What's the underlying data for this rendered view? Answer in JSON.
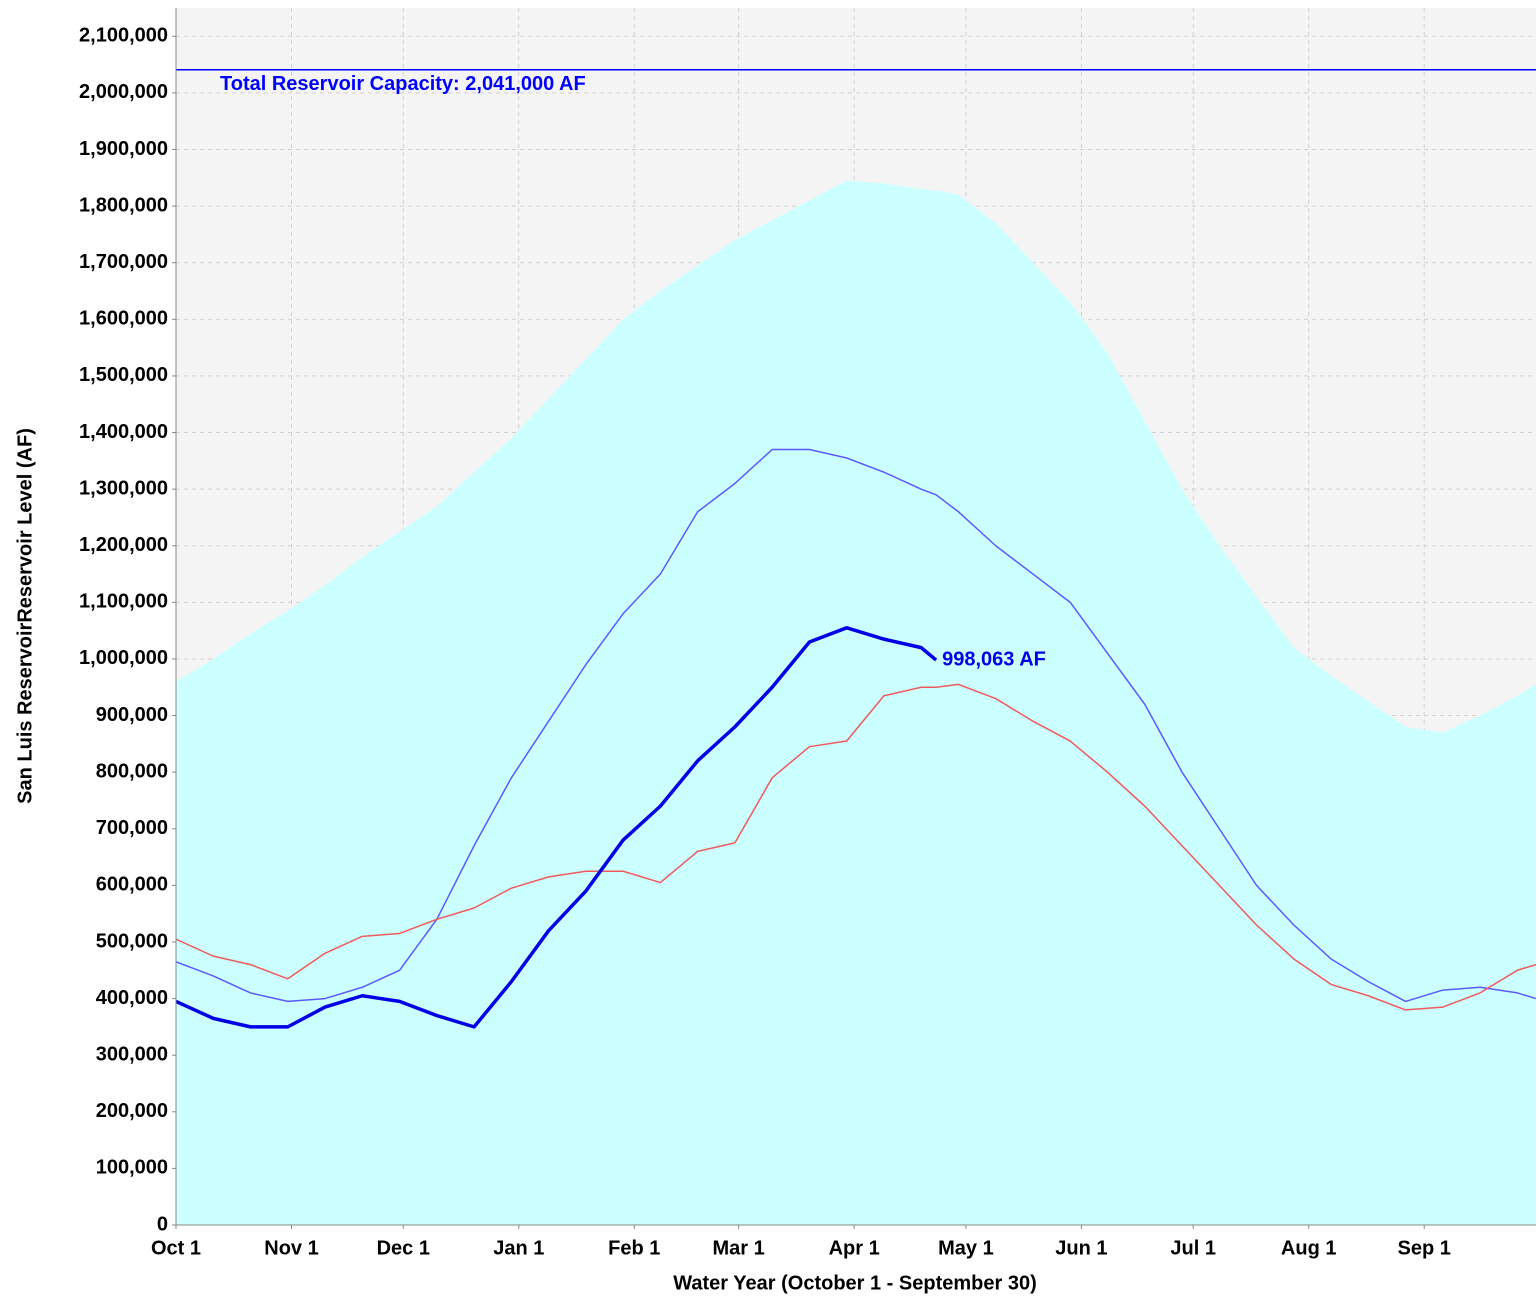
{
  "chart_data": {
    "type": "line",
    "xlabel": "Water Year (October 1 - September 30)",
    "ylabel": "San Luis ReservoirReservoir Level (AF)",
    "x": [
      0,
      10,
      20,
      30,
      40,
      50,
      60,
      70,
      80,
      90,
      100,
      110,
      120,
      130,
      140,
      150,
      160,
      170,
      180,
      190,
      200,
      204,
      210,
      220,
      230,
      240,
      250,
      260,
      270,
      280,
      290,
      300,
      310,
      320,
      330,
      340,
      350,
      360,
      365
    ],
    "xlim": [
      0,
      365
    ],
    "xticks": [
      {
        "value": 0,
        "label": "Oct 1"
      },
      {
        "value": 31,
        "label": "Nov 1"
      },
      {
        "value": 61,
        "label": "Dec 1"
      },
      {
        "value": 92,
        "label": "Jan 1"
      },
      {
        "value": 123,
        "label": "Feb 1"
      },
      {
        "value": 151,
        "label": "Mar 1"
      },
      {
        "value": 182,
        "label": "Apr 1"
      },
      {
        "value": 212,
        "label": "May 1"
      },
      {
        "value": 243,
        "label": "Jun 1"
      },
      {
        "value": 273,
        "label": "Jul 1"
      },
      {
        "value": 304,
        "label": "Aug 1"
      },
      {
        "value": 335,
        "label": "Sep 1"
      }
    ],
    "ylim": [
      0,
      2150000
    ],
    "yticks": [
      0,
      {
        "value": 100000,
        "label": "100,000"
      },
      {
        "value": 200000,
        "label": "200,000"
      },
      {
        "value": 300000,
        "label": "300,000"
      },
      {
        "value": 400000,
        "label": "400,000"
      },
      {
        "value": 500000,
        "label": "500,000"
      },
      {
        "value": 600000,
        "label": "600,000"
      },
      {
        "value": 700000,
        "label": "700,000"
      },
      {
        "value": 800000,
        "label": "800,000"
      },
      {
        "value": 900000,
        "label": "900,000"
      },
      {
        "value": 1000000,
        "label": "1,000,000"
      },
      {
        "value": 1100000,
        "label": "1,100,000"
      },
      {
        "value": 1200000,
        "label": "1,200,000"
      },
      {
        "value": 1300000,
        "label": "1,300,000"
      },
      {
        "value": 1400000,
        "label": "1,400,000"
      },
      {
        "value": 1500000,
        "label": "1,500,000"
      },
      {
        "value": 1600000,
        "label": "1,600,000"
      },
      {
        "value": 1700000,
        "label": "1,700,000"
      },
      {
        "value": 1800000,
        "label": "1,800,000"
      },
      {
        "value": 1900000,
        "label": "1,900,000"
      },
      {
        "value": 2000000,
        "label": "2,000,000"
      },
      {
        "value": 2100000,
        "label": "2,100,000"
      }
    ],
    "grid": true,
    "capacity": {
      "value": 2041000,
      "label": "Total Reservoir Capacity: 2,041,000 AF",
      "color": "#0000ff"
    },
    "series": [
      {
        "kind": "area",
        "color": "#ccffff",
        "values": [
          960000,
          1000000,
          1045000,
          1085000,
          1130000,
          1180000,
          1225000,
          1270000,
          1330000,
          1390000,
          1460000,
          1530000,
          1600000,
          1650000,
          1695000,
          1740000,
          1775000,
          1810000,
          1845000,
          1840000,
          1830000,
          1828000,
          1820000,
          1770000,
          1700000,
          1630000,
          1540000,
          1420000,
          1300000,
          1200000,
          1110000,
          1020000,
          970000,
          925000,
          880000,
          870000,
          900000,
          935000,
          955000
        ]
      },
      {
        "kind": "line",
        "color": "#5a5aff",
        "width": 1.5,
        "values": [
          465000,
          440000,
          410000,
          395000,
          400000,
          420000,
          450000,
          540000,
          670000,
          790000,
          890000,
          990000,
          1080000,
          1150000,
          1260000,
          1310000,
          1370000,
          1370000,
          1355000,
          1330000,
          1300000,
          1290000,
          1260000,
          1200000,
          1150000,
          1100000,
          1010000,
          920000,
          800000,
          700000,
          600000,
          530000,
          470000,
          430000,
          395000,
          415000,
          420000,
          410000,
          400000
        ]
      },
      {
        "kind": "line",
        "color": "#f05a5a",
        "width": 1.5,
        "values": [
          505000,
          475000,
          460000,
          435000,
          480000,
          510000,
          515000,
          540000,
          560000,
          595000,
          615000,
          625000,
          625000,
          605000,
          660000,
          675000,
          790000,
          845000,
          855000,
          935000,
          950000,
          950000,
          955000,
          930000,
          890000,
          855000,
          800000,
          740000,
          670000,
          600000,
          530000,
          470000,
          425000,
          405000,
          380000,
          385000,
          410000,
          450000,
          460000
        ]
      },
      {
        "kind": "line",
        "color": "#0000e6",
        "width": 3.5,
        "values": [
          395000,
          365000,
          350000,
          350000,
          385000,
          405000,
          395000,
          370000,
          350000,
          430000,
          520000,
          590000,
          680000,
          740000,
          820000,
          880000,
          950000,
          1030000,
          1055000,
          1035000,
          1020000,
          998063,
          null,
          null,
          null,
          null,
          null,
          null,
          null,
          null,
          null,
          null,
          null,
          null,
          null,
          null,
          null,
          null,
          null
        ],
        "value_labels": [
          null,
          null,
          null,
          null,
          null,
          null,
          null,
          null,
          null,
          null,
          null,
          null,
          null,
          null,
          null,
          null,
          null,
          null,
          null,
          null,
          null,
          "998,063 AF",
          null,
          null,
          null,
          null,
          null,
          null,
          null,
          null,
          null,
          null,
          null,
          null,
          null,
          null,
          null,
          null,
          null
        ]
      }
    ]
  }
}
